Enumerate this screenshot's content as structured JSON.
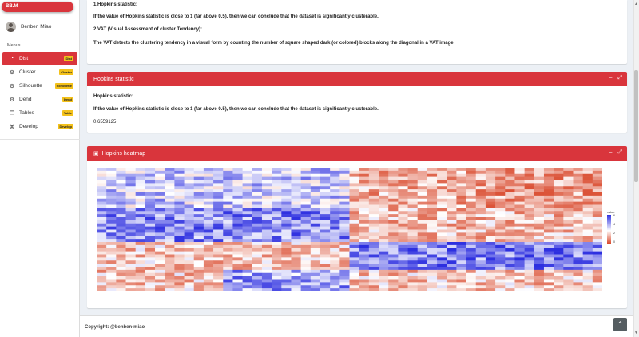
{
  "brand": "BB.M",
  "user": {
    "name": "Benben Miao"
  },
  "menus_label": "Menus",
  "menu": [
    {
      "label": "Dist",
      "badge": "Dist",
      "icon": "pie-chart-icon",
      "active": true
    },
    {
      "label": "Cluster",
      "badge": "Cluster",
      "icon": "gear-icon",
      "active": false
    },
    {
      "label": "Silhouette",
      "badge": "Silhouette",
      "icon": "gear-icon",
      "active": false
    },
    {
      "label": "Dend",
      "badge": "Dend",
      "icon": "gear-icon",
      "active": false
    },
    {
      "label": "Tables",
      "badge": "Table",
      "icon": "copy-icon",
      "active": false
    },
    {
      "label": "Develop",
      "badge": "Develop",
      "icon": "code-icon",
      "active": false
    }
  ],
  "box_info": {
    "line1": "1.Hopkins statistic:",
    "line2": "If the value of Hopkins statistic is close to 1 (far above 0.5), then we can conclude that the dataset is significantly clusterable.",
    "line3": "2.VAT (Visual Assessment of cluster Tendency):",
    "line4": "The VAT detects the clustering tendency in a visual form by counting the number of square shaped dark (or colored) blocks along the diagonal in a VAT image."
  },
  "box_hopkins": {
    "title": "Hopkins statistic",
    "heading": "Hopkins statistic:",
    "explanation": "If the value of Hopkins statistic is close to 1 (far above 0.5), then we can conclude that the dataset is significantly clusterable.",
    "value": "0.6559125"
  },
  "box_heatmap": {
    "title": "Hopkins heatmap",
    "legend_title": "value",
    "legend_ticks": [
      "6",
      "4",
      "2",
      "0"
    ]
  },
  "tools": {
    "collapse": "–",
    "expand": "⤢"
  },
  "footer": "Copyright: @benben-miao",
  "colors": {
    "accent": "#d9353c",
    "badge": "#f3c11a",
    "high": "#2d2fe0",
    "low": "#d9482b"
  }
}
